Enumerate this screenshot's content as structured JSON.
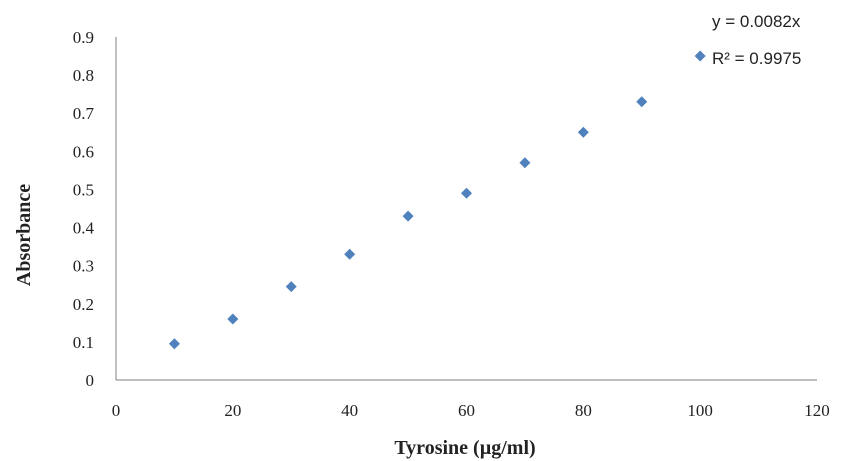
{
  "chart_data": {
    "type": "scatter",
    "x": [
      10,
      20,
      30,
      40,
      50,
      60,
      70,
      80,
      90,
      100
    ],
    "y": [
      0.095,
      0.16,
      0.245,
      0.33,
      0.43,
      0.49,
      0.57,
      0.65,
      0.73,
      0.85
    ],
    "series_color": "#4F81BD",
    "marker": "diamond",
    "xlabel": "Tyrosine (µg/ml)",
    "ylabel": "Absorbance",
    "xlim": [
      0,
      120
    ],
    "ylim": [
      0,
      0.9
    ],
    "xticks": [
      "0",
      "20",
      "40",
      "60",
      "80",
      "100",
      "120"
    ],
    "yticks": [
      "0",
      "0.1",
      "0.2",
      "0.3",
      "0.4",
      "0.5",
      "0.6",
      "0.7",
      "0.8",
      "0.9"
    ],
    "grid": false,
    "trendline": {
      "equation": "y = 0.0082x",
      "r_squared": "R² = 0.9975",
      "displayed_line": false
    }
  }
}
